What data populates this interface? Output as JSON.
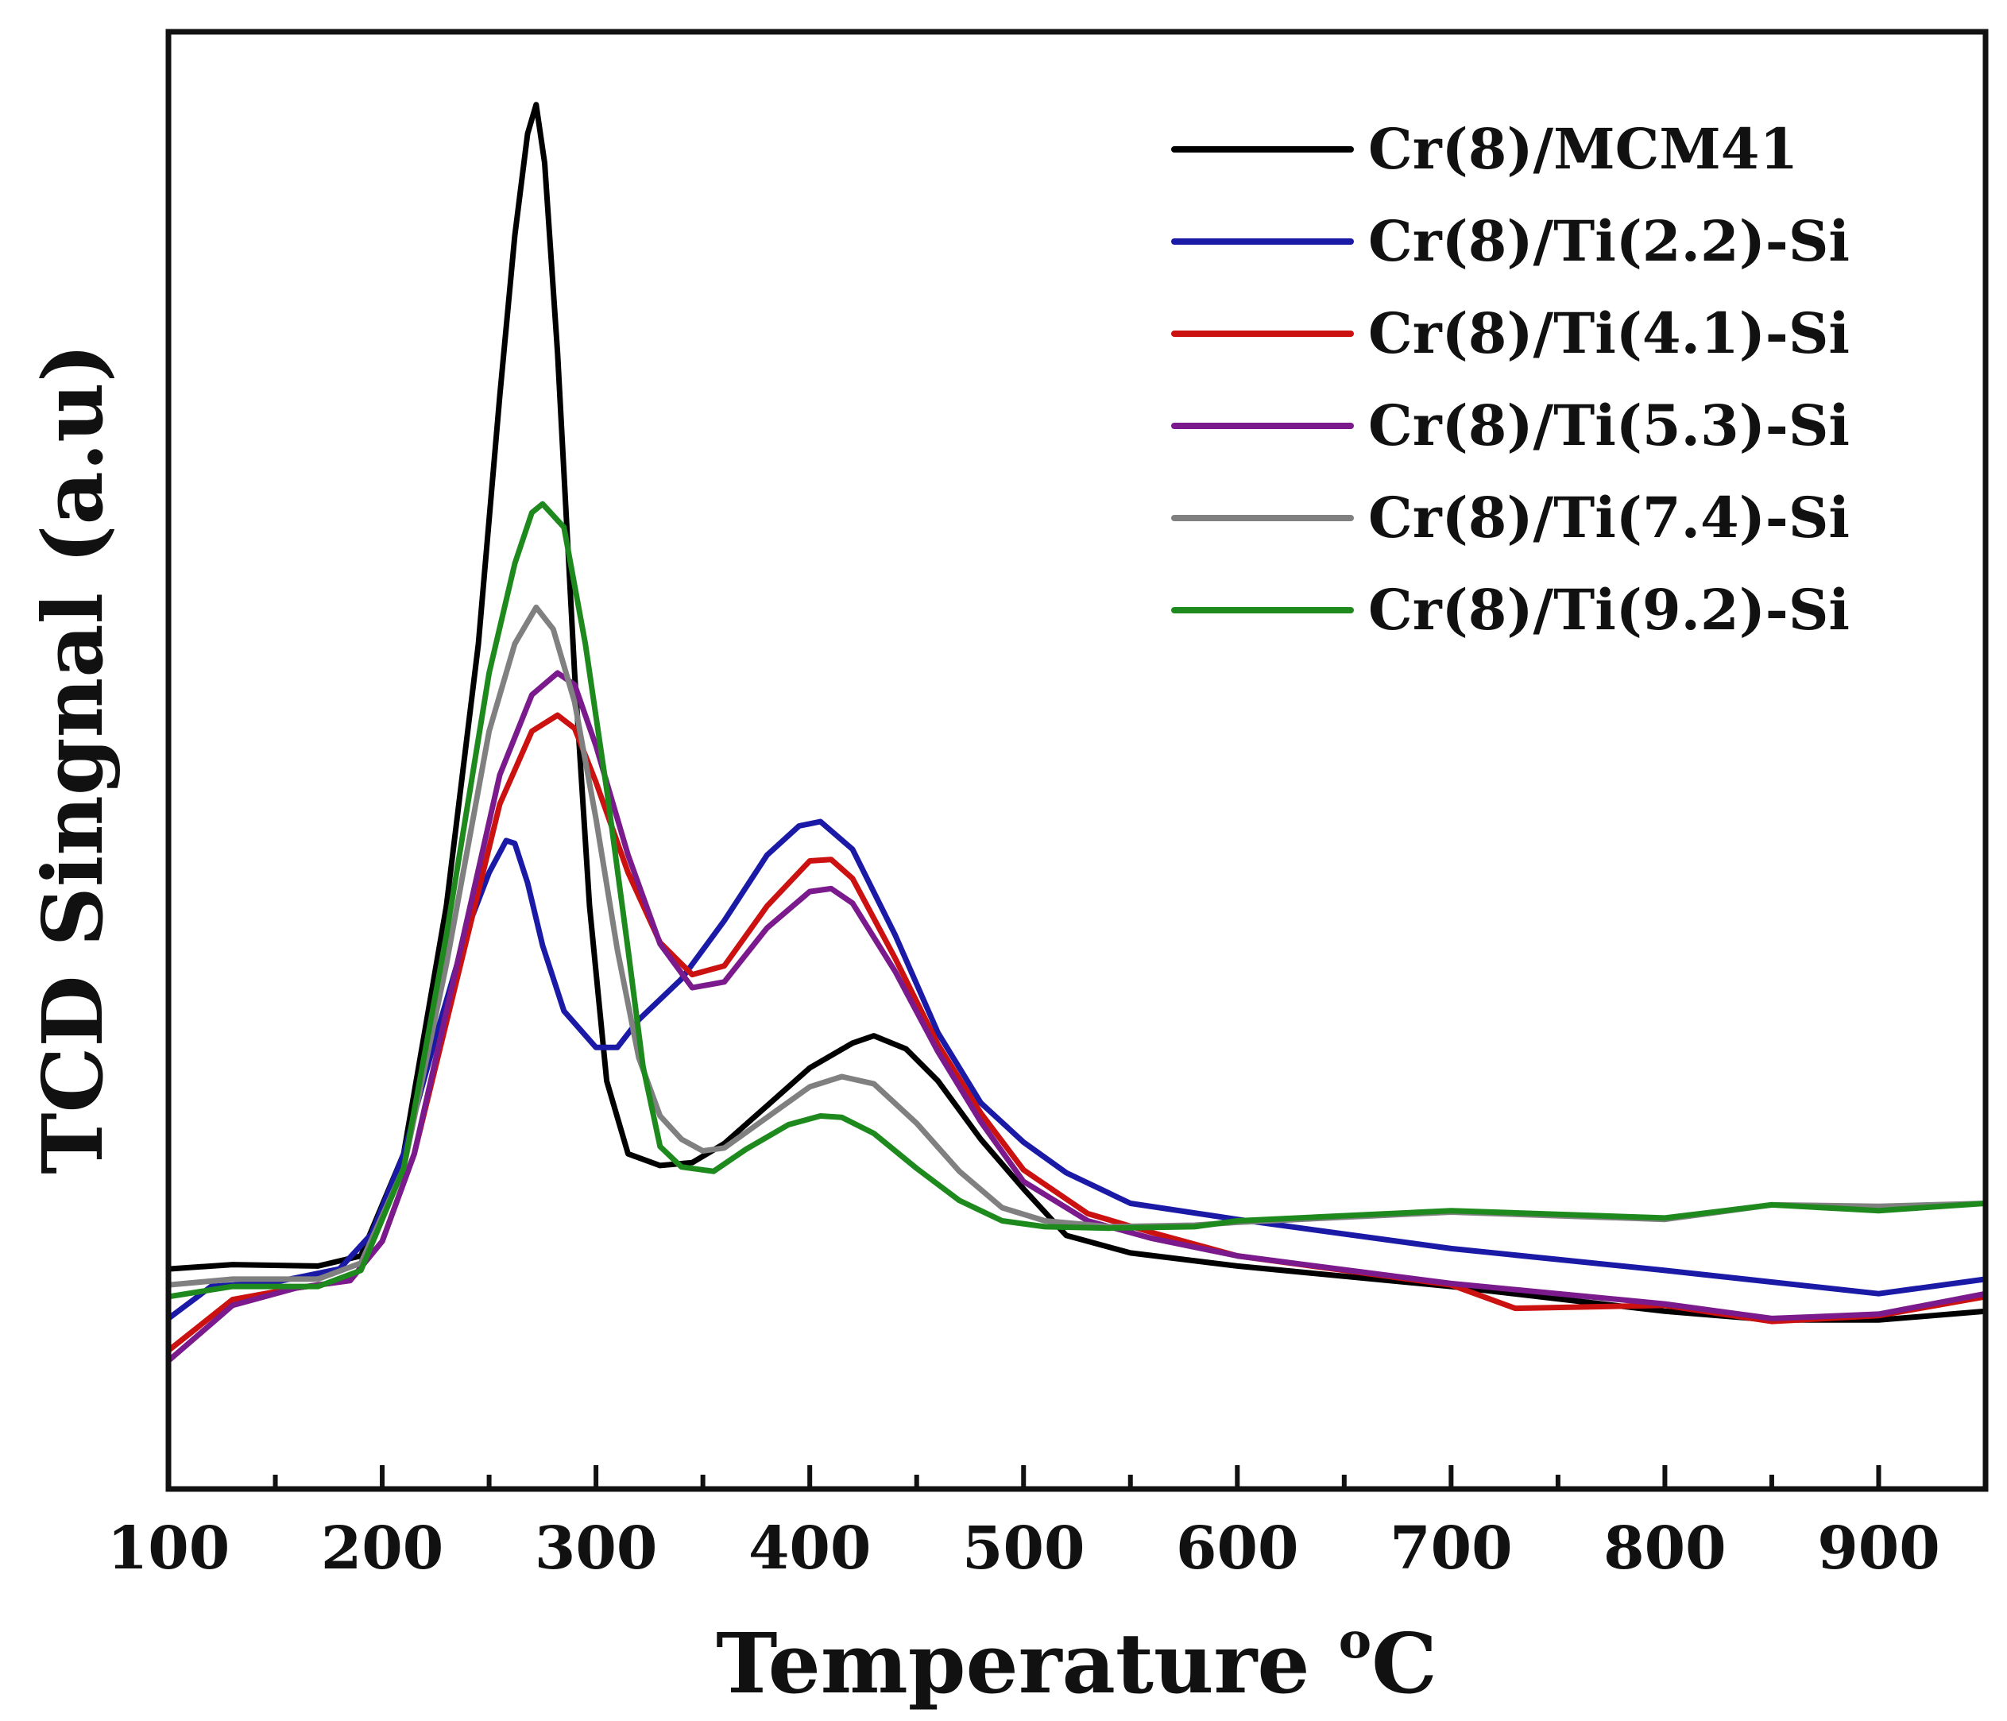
{
  "chart_data": {
    "type": "line",
    "title": "",
    "xlabel": "Temperature",
    "xlabel_unit_sup": "o",
    "xlabel_unit": "C",
    "ylabel": "TCD Singnal (a.u)",
    "xlim": [
      100,
      950
    ],
    "ylim": [
      0,
      100
    ],
    "x_ticks": [
      100,
      200,
      300,
      400,
      500,
      600,
      700,
      800,
      900
    ],
    "x_tick_labels": [
      "100",
      "200",
      "300",
      "400",
      "500",
      "600",
      "700",
      "800",
      "900"
    ],
    "legend_position": "top-right",
    "series": [
      {
        "name": "Cr(8)/MCM41",
        "color": "#000000",
        "x": [
          100,
          130,
          170,
          190,
          210,
          230,
          245,
          255,
          262,
          268,
          272,
          276,
          282,
          290,
          297,
          305,
          315,
          330,
          345,
          360,
          380,
          400,
          420,
          430,
          445,
          460,
          480,
          500,
          520,
          550,
          600,
          700,
          800,
          850,
          900,
          950
        ],
        "y": [
          15.1,
          15.4,
          15.3,
          16.0,
          23.0,
          40.0,
          58.0,
          75.0,
          86.0,
          93.0,
          95.0,
          91.0,
          78.0,
          56.0,
          40.0,
          28.0,
          23.0,
          22.2,
          22.4,
          23.7,
          26.3,
          28.9,
          30.6,
          31.1,
          30.2,
          28.0,
          24.0,
          20.6,
          17.4,
          16.2,
          15.3,
          13.9,
          12.2,
          11.6,
          11.6,
          12.2
        ]
      },
      {
        "name": "Cr(8)/Ti(2.2)-Si",
        "color": "#1a1aa6",
        "x": [
          100,
          120,
          150,
          180,
          195,
          210,
          225,
          240,
          250,
          258,
          262,
          268,
          275,
          285,
          300,
          310,
          320,
          340,
          360,
          380,
          395,
          405,
          420,
          440,
          460,
          480,
          500,
          520,
          550,
          600,
          700,
          800,
          900,
          950
        ],
        "y": [
          11.7,
          13.9,
          14.2,
          15.1,
          17.5,
          23.0,
          31.0,
          38.5,
          42.3,
          44.5,
          44.3,
          41.6,
          37.3,
          32.8,
          30.3,
          30.3,
          32.2,
          35.0,
          39.0,
          43.5,
          45.5,
          45.8,
          43.9,
          38.0,
          31.3,
          26.5,
          23.8,
          21.7,
          19.6,
          18.5,
          16.5,
          15.0,
          13.4,
          14.4
        ]
      },
      {
        "name": "Cr(8)/Ti(4.1)-Si",
        "color": "#cc1111",
        "x": [
          100,
          130,
          160,
          185,
          200,
          215,
          235,
          255,
          270,
          282,
          290,
          300,
          315,
          330,
          345,
          360,
          380,
          400,
          410,
          420,
          440,
          460,
          480,
          500,
          530,
          560,
          600,
          700,
          730,
          800,
          850,
          900,
          950
        ],
        "y": [
          9.5,
          13.0,
          13.8,
          14.3,
          17.0,
          23.0,
          35.0,
          47.0,
          52.0,
          53.1,
          52.2,
          48.5,
          42.3,
          37.5,
          35.3,
          35.9,
          40.0,
          43.1,
          43.2,
          41.9,
          36.4,
          30.5,
          25.8,
          21.9,
          18.9,
          17.6,
          16.0,
          14.0,
          12.4,
          12.6,
          11.5,
          11.9,
          13.2
        ]
      },
      {
        "name": "Cr(8)/Ti(5.3)-Si",
        "color": "#7a1a8c",
        "x": [
          100,
          130,
          160,
          185,
          200,
          215,
          235,
          255,
          270,
          282,
          290,
          300,
          315,
          330,
          345,
          360,
          380,
          400,
          410,
          420,
          440,
          460,
          480,
          500,
          530,
          560,
          600,
          700,
          800,
          850,
          900,
          950
        ],
        "y": [
          8.8,
          12.6,
          13.8,
          14.3,
          17.0,
          23.0,
          36.0,
          49.0,
          54.5,
          56.0,
          55.2,
          51.0,
          43.5,
          37.4,
          34.4,
          34.8,
          38.5,
          41.0,
          41.2,
          40.2,
          35.5,
          30.0,
          25.2,
          21.1,
          18.4,
          17.2,
          16.0,
          14.1,
          12.7,
          11.7,
          12.0,
          13.4
        ]
      },
      {
        "name": "Cr(8)/Ti(7.4)-Si",
        "color": "#808080",
        "x": [
          100,
          130,
          170,
          190,
          210,
          230,
          250,
          262,
          272,
          280,
          290,
          300,
          310,
          320,
          330,
          340,
          350,
          360,
          380,
          400,
          415,
          430,
          450,
          470,
          490,
          510,
          540,
          580,
          600,
          700,
          800,
          850,
          900,
          950
        ],
        "y": [
          14.0,
          14.4,
          14.4,
          15.5,
          22.0,
          36.0,
          52.0,
          58.0,
          60.5,
          59.0,
          54.0,
          46.0,
          37.0,
          29.6,
          25.6,
          24.0,
          23.2,
          23.4,
          25.5,
          27.6,
          28.3,
          27.8,
          25.1,
          21.8,
          19.3,
          18.4,
          18.0,
          18.1,
          18.3,
          19.0,
          18.5,
          19.5,
          19.4,
          19.6
        ]
      },
      {
        "name": "Cr(8)/Ti(9.2)-Si",
        "color": "#1e8a1e",
        "x": [
          100,
          130,
          170,
          190,
          210,
          230,
          250,
          262,
          270,
          275,
          285,
          295,
          305,
          315,
          322,
          330,
          340,
          355,
          370,
          390,
          405,
          415,
          430,
          450,
          470,
          490,
          510,
          540,
          580,
          600,
          700,
          800,
          850,
          900,
          950
        ],
        "y": [
          13.2,
          13.9,
          13.9,
          15.0,
          22.0,
          38.0,
          56.0,
          63.5,
          67.0,
          67.6,
          66.0,
          58.0,
          48.0,
          37.0,
          29.0,
          23.5,
          22.1,
          21.8,
          23.3,
          25.0,
          25.6,
          25.5,
          24.4,
          22.0,
          19.8,
          18.4,
          18.0,
          17.9,
          18.0,
          18.4,
          19.1,
          18.6,
          19.5,
          19.1,
          19.6
        ]
      }
    ]
  }
}
